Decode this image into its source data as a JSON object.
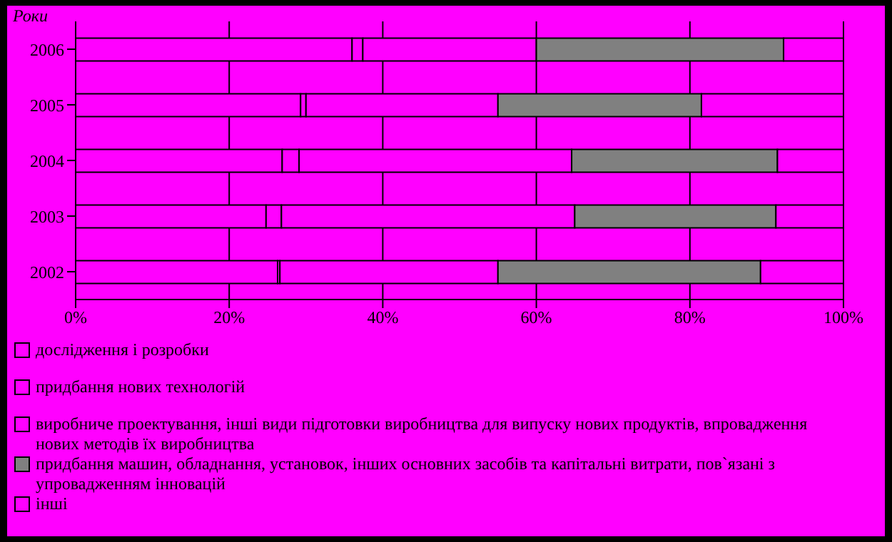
{
  "chart_data": {
    "type": "bar",
    "orientation": "horizontal",
    "stacked": true,
    "ylabel": "Роки",
    "categories": [
      "2006",
      "2005",
      "2004",
      "2003",
      "2002"
    ],
    "series": [
      {
        "name": "дослідження і розробки",
        "color": "#ff00ff",
        "values": [
          36.0,
          29.3,
          26.9,
          24.8,
          26.3
        ]
      },
      {
        "name": "придбання нових технологій",
        "color": "#ff00ff",
        "values": [
          1.4,
          0.7,
          2.2,
          2.0,
          0.3
        ]
      },
      {
        "name": "виробниче проектування, інші види підготовки виробництва для випуску нових продуктів, впровадження нових методів їх виробництва",
        "color": "#ff00ff",
        "values": [
          22.6,
          25.0,
          35.5,
          38.2,
          28.4
        ]
      },
      {
        "name": "придбання машин, обладнання, установок, інших основних засобів та капітальні витрати, пов`язані з упровадженням інновацій",
        "color": "#808080",
        "values": [
          32.2,
          26.5,
          26.8,
          26.2,
          34.2
        ]
      },
      {
        "name": "інші",
        "color": "#ff00ff",
        "values": [
          7.8,
          18.5,
          8.6,
          8.8,
          10.8
        ]
      }
    ],
    "xlim": [
      0,
      100
    ],
    "xticks": [
      {
        "value": 0,
        "label": "0%"
      },
      {
        "value": 20,
        "label": "20%"
      },
      {
        "value": 40,
        "label": "40%"
      },
      {
        "value": 60,
        "label": "60%"
      },
      {
        "value": 80,
        "label": "80%"
      },
      {
        "value": 100,
        "label": "100%"
      }
    ],
    "grid": "x",
    "legend": "bottom"
  }
}
